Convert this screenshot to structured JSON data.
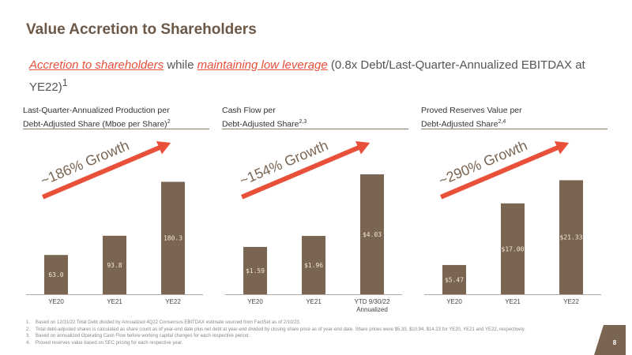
{
  "slide": {
    "title": "Value Accretion to Shareholders",
    "subtitle_part1": "Accretion to shareholders",
    "subtitle_part2": " while ",
    "subtitle_part3": "maintaining low leverage",
    "subtitle_part4": " (0.8x Debt/Last-Quarter-Annualized EBITDAX at YE22)",
    "subtitle_sup": "1",
    "page_number": "8",
    "colors": {
      "bar": "#7a6552",
      "accent": "#e8503a",
      "title": "#6b5848"
    }
  },
  "panels": [
    {
      "header_line1": "Last-Quarter-Annualized Production per",
      "header_line2": "Debt-Adjusted Share (Mboe per Share)",
      "header_sup": "2"
    },
    {
      "header_line1": "Cash Flow per",
      "header_line2": "Debt-Adjusted Share",
      "header_sup": "2,3"
    },
    {
      "header_line1": "Proved Reserves Value per",
      "header_line2": "Debt-Adjusted Share",
      "header_sup": "2,4"
    }
  ],
  "chart_data": [
    {
      "type": "bar",
      "categories": [
        "YE20",
        "YE21",
        "YE22"
      ],
      "values": [
        63.0,
        93.8,
        180.3
      ],
      "data_labels": [
        "63.0",
        "93.8",
        "180.3"
      ],
      "annotation": "~186% Growth",
      "ylim": [
        0,
        210
      ]
    },
    {
      "type": "bar",
      "categories": [
        "YE20",
        "YE21",
        "YTD 9/30/22"
      ],
      "category_sublabels": [
        "",
        "",
        "Annualized"
      ],
      "values": [
        1.59,
        1.96,
        4.03
      ],
      "data_labels": [
        "$1.59",
        "$1.96",
        "$4.03"
      ],
      "annotation": "~154% Growth",
      "ylim": [
        0,
        4.4
      ]
    },
    {
      "type": "bar",
      "categories": [
        "YE20",
        "YE21",
        "YE22"
      ],
      "values": [
        5.47,
        17.0,
        21.33
      ],
      "data_labels": [
        "$5.47",
        "$17.00",
        "$21.33"
      ],
      "annotation": "~290% Growth",
      "ylim": [
        0,
        24.5
      ]
    }
  ],
  "footnotes": [
    {
      "num": "1.",
      "text": "Based on 12/31/22 Total Debt divided by Annualized 4Q22 Consensus EBITDAX estimate sourced from FactSet as of 2/10/23."
    },
    {
      "num": "2.",
      "text": "Total debt-adjusted shares is calculated as share count as of year-end date plus net debt at year-end divided by closing share price as of year-end date. Share prices were $5.33, $10.94, $14.23 for YE20, YE21 and YE22, respectively."
    },
    {
      "num": "3.",
      "text": "Based on annualized Operating Cash Flow before working capital changes for each respective period."
    },
    {
      "num": "4.",
      "text": "Proved reserves value based on SEC pricing for each respective year."
    }
  ]
}
